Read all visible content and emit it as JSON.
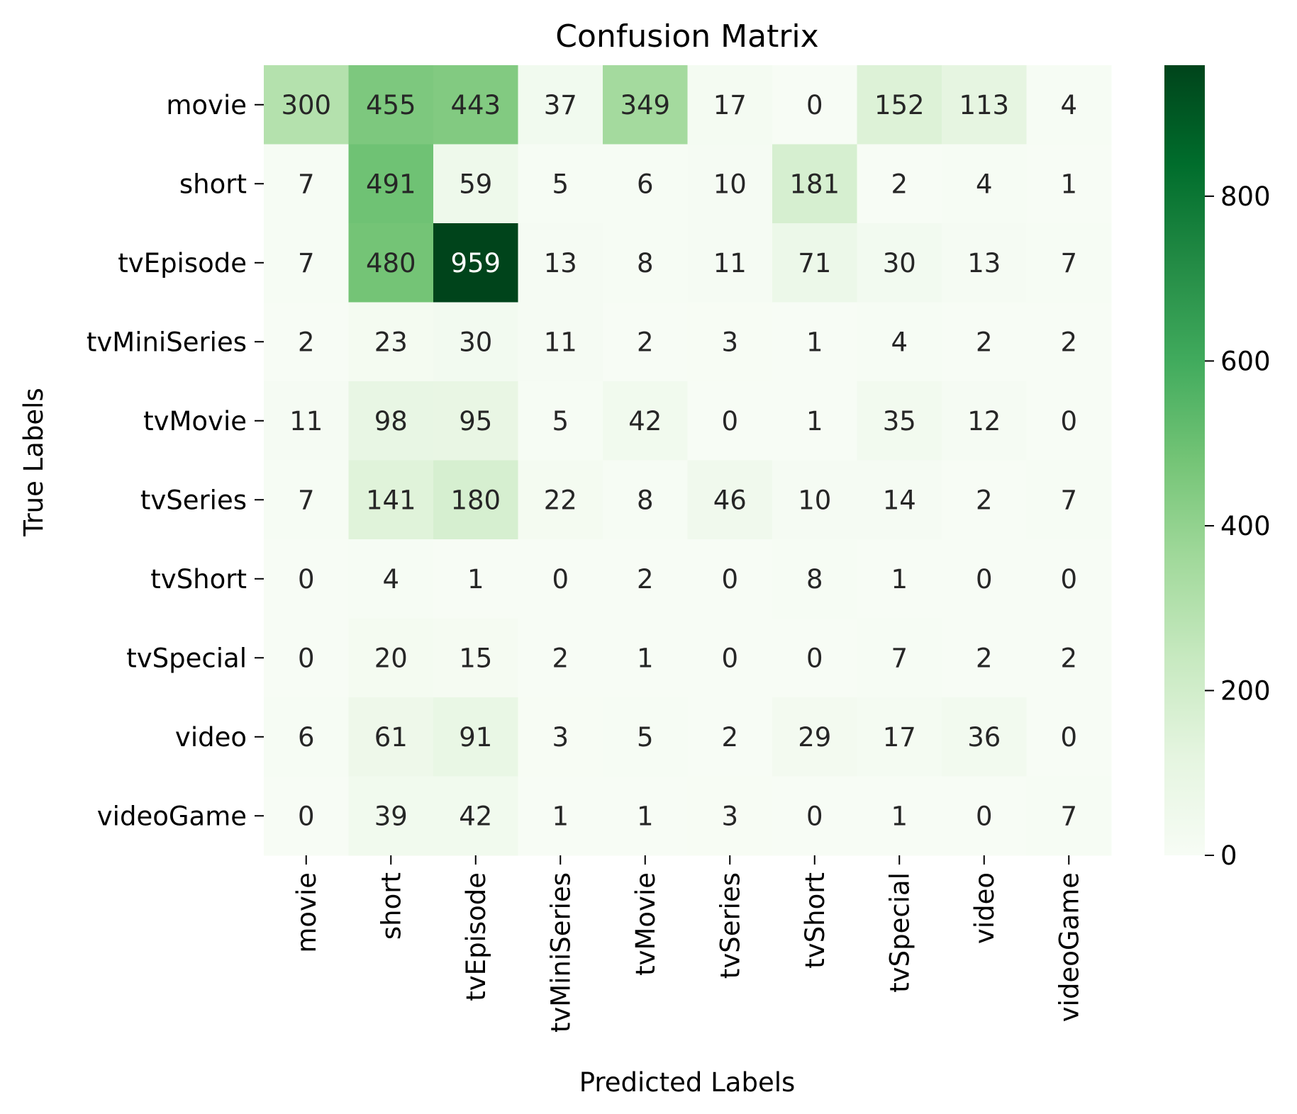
{
  "chart_data": {
    "type": "heatmap",
    "title": "Confusion Matrix",
    "xlabel": "Predicted Labels",
    "ylabel": "True Labels",
    "x_categories": [
      "movie",
      "short",
      "tvEpisode",
      "tvMiniSeries",
      "tvMovie",
      "tvSeries",
      "tvShort",
      "tvSpecial",
      "video",
      "videoGame"
    ],
    "y_categories": [
      "movie",
      "short",
      "tvEpisode",
      "tvMiniSeries",
      "tvMovie",
      "tvSeries",
      "tvShort",
      "tvSpecial",
      "video",
      "videoGame"
    ],
    "values": [
      [
        300,
        455,
        443,
        37,
        349,
        17,
        0,
        152,
        113,
        4
      ],
      [
        7,
        491,
        59,
        5,
        6,
        10,
        181,
        2,
        4,
        1
      ],
      [
        7,
        480,
        959,
        13,
        8,
        11,
        71,
        30,
        13,
        7
      ],
      [
        2,
        23,
        30,
        11,
        2,
        3,
        1,
        4,
        2,
        2
      ],
      [
        11,
        98,
        95,
        5,
        42,
        0,
        1,
        35,
        12,
        0
      ],
      [
        7,
        141,
        180,
        22,
        8,
        46,
        10,
        14,
        2,
        7
      ],
      [
        0,
        4,
        1,
        0,
        2,
        0,
        8,
        1,
        0,
        0
      ],
      [
        0,
        20,
        15,
        2,
        1,
        0,
        0,
        7,
        2,
        2
      ],
      [
        6,
        61,
        91,
        3,
        5,
        2,
        29,
        17,
        36,
        0
      ],
      [
        0,
        39,
        42,
        1,
        1,
        3,
        0,
        1,
        0,
        7
      ]
    ],
    "colormap": "Greens",
    "colors": [
      "#f7fcf5",
      "#e5f5e0",
      "#c7e9c0",
      "#a1d99b",
      "#74c476",
      "#41ab5d",
      "#238b45",
      "#006d2c",
      "#00441b"
    ],
    "vmin": 0,
    "vmax": 959,
    "colorbar_ticks": [
      0,
      200,
      400,
      600,
      800
    ]
  }
}
